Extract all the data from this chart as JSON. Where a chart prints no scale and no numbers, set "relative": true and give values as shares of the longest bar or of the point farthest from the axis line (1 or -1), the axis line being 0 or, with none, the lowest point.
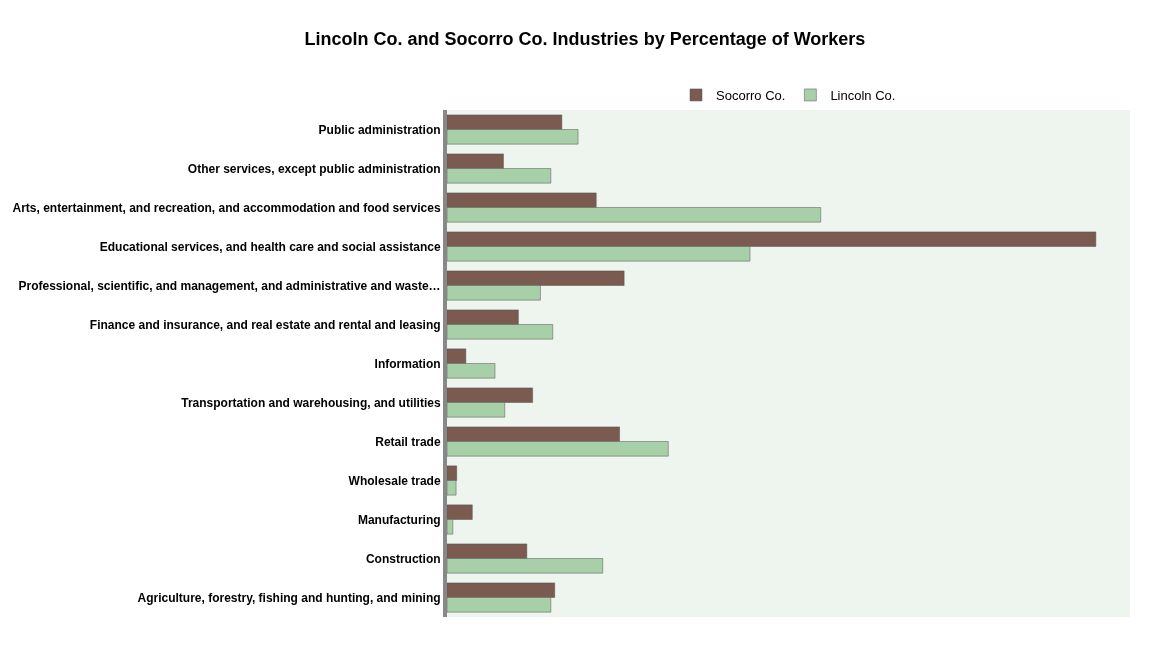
{
  "chart_data": {
    "type": "bar",
    "orientation": "horizontal",
    "relative": true,
    "title": "Lincoln Co. and Socorro Co. Industries by Percentage of Workers",
    "categories": [
      "Public administration",
      "Other services, except public administration",
      "Arts, entertainment, and recreation, and accommodation and food services",
      "Educational services, and health care and social assistance",
      "Professional, scientific, and management, and administrative and waste…",
      "Finance and insurance, and real estate and rental and leasing",
      "Information",
      "Transportation and warehousing, and utilities",
      "Retail trade",
      "Wholesale trade",
      "Manufacturing",
      "Construction",
      "Agriculture, forestry, fishing and hunting, and mining"
    ],
    "series": [
      {
        "name": "Socorro Co.",
        "color": "#7b5a50",
        "values": [
          0.177,
          0.087,
          0.23,
          1.0,
          0.273,
          0.11,
          0.029,
          0.132,
          0.266,
          0.015,
          0.039,
          0.123,
          0.166
        ]
      },
      {
        "name": "Lincoln Co.",
        "color": "#a8d0a8",
        "values": [
          0.202,
          0.16,
          0.576,
          0.467,
          0.144,
          0.163,
          0.074,
          0.089,
          0.341,
          0.014,
          0.009,
          0.24,
          0.16
        ]
      }
    ],
    "legend": "top",
    "grid": false
  }
}
